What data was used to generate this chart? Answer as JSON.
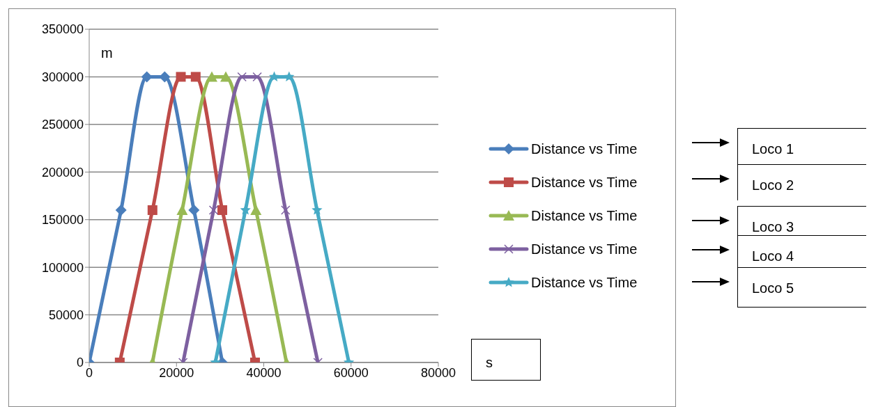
{
  "chart_data": {
    "type": "line",
    "xlabel": "s",
    "ylabel": "m",
    "xlim": [
      0,
      80000
    ],
    "xticks": [
      0,
      20000,
      40000,
      60000,
      80000
    ],
    "ylim": [
      0,
      350000
    ],
    "yticks": [
      0,
      50000,
      100000,
      150000,
      200000,
      250000,
      300000,
      350000
    ],
    "grid": "y",
    "legend": "right",
    "line_style": "solid",
    "series": [
      {
        "name": "Distance vs Time",
        "color": "#4a7ebb",
        "marker": "diamond",
        "x": [
          0,
          7300,
          13200,
          17300,
          24000,
          30500
        ],
        "values": [
          0,
          160000,
          300000,
          300000,
          160000,
          0
        ]
      },
      {
        "name": "Distance vs Time",
        "color": "#be4b48",
        "marker": "square",
        "x": [
          7000,
          14500,
          21000,
          24400,
          30500,
          38000
        ],
        "values": [
          0,
          160000,
          300000,
          300000,
          160000,
          0
        ]
      },
      {
        "name": "Distance vs Time",
        "color": "#98b954",
        "marker": "triangle",
        "x": [
          14500,
          21300,
          28100,
          31300,
          38200,
          45200
        ],
        "values": [
          0,
          160000,
          300000,
          300000,
          160000,
          0
        ]
      },
      {
        "name": "Distance vs Time",
        "color": "#7d60a0",
        "marker": "cross",
        "x": [
          21500,
          28500,
          35000,
          38500,
          45000,
          52400
        ],
        "values": [
          0,
          160000,
          300000,
          300000,
          160000,
          0
        ]
      },
      {
        "name": "Distance vs Time",
        "color": "#46aac5",
        "marker": "star",
        "x": [
          28900,
          35800,
          42400,
          45800,
          52200,
          59500
        ],
        "values": [
          0,
          160000,
          300000,
          300000,
          160000,
          0
        ]
      }
    ],
    "annotations": [
      "Loco 1",
      "Loco 2",
      "Loco 3",
      "Loco 4",
      "Loco 5"
    ]
  }
}
